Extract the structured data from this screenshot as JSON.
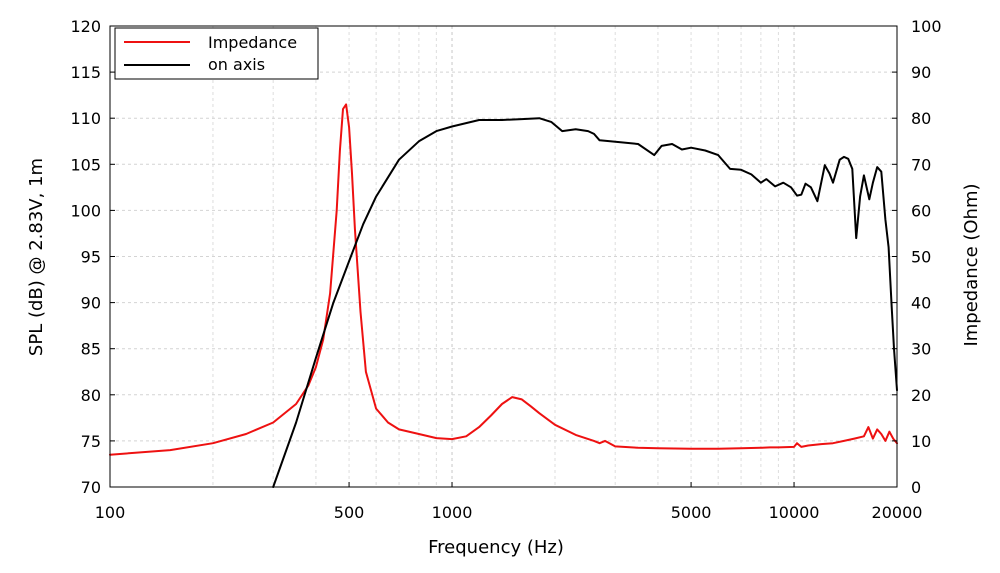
{
  "chart_data": {
    "type": "line",
    "xscale": "log",
    "xlim": [
      100,
      20000
    ],
    "x_ticks": [
      100,
      500,
      1000,
      5000,
      10000,
      20000
    ],
    "x_tick_labels": [
      "100",
      "500",
      "1000",
      "5000",
      "10000",
      "20000"
    ],
    "xlabel": "Frequency (Hz)",
    "y_left": {
      "label": "SPL (dB) @ 2.83V, 1m",
      "lim": [
        70,
        120
      ],
      "ticks": [
        70,
        75,
        80,
        85,
        90,
        95,
        100,
        105,
        110,
        115,
        120
      ],
      "tick_labels": [
        "70",
        "75",
        "80",
        "85",
        "90",
        "95",
        "100",
        "105",
        "110",
        "115",
        "120"
      ]
    },
    "y_right": {
      "label": "Impedance (Ohm)",
      "lim": [
        0,
        100
      ],
      "ticks": [
        0,
        10,
        20,
        30,
        40,
        50,
        60,
        70,
        80,
        90,
        100
      ],
      "tick_labels": [
        "0",
        "10",
        "20",
        "30",
        "40",
        "50",
        "60",
        "70",
        "80",
        "90",
        "100"
      ]
    },
    "grid": true,
    "legend": {
      "position": "top-left",
      "entries": [
        {
          "label": "Impedance",
          "color": "#ee1111"
        },
        {
          "label": "on axis",
          "color": "#000000"
        }
      ]
    },
    "series": [
      {
        "name": "Impedance",
        "axis": "right",
        "color": "#ee1111",
        "x": [
          100,
          150,
          200,
          250,
          300,
          350,
          380,
          400,
          420,
          440,
          460,
          470,
          480,
          490,
          500,
          510,
          520,
          540,
          560,
          600,
          650,
          700,
          800,
          900,
          1000,
          1100,
          1200,
          1300,
          1400,
          1500,
          1600,
          1700,
          1800,
          2000,
          2300,
          2600,
          2700,
          2800,
          3000,
          3500,
          4000,
          5000,
          6000,
          7000,
          8000,
          8500,
          9000,
          10000,
          10200,
          10500,
          11000,
          12000,
          13000,
          14000,
          15000,
          16000,
          16500,
          17000,
          17500,
          18000,
          18500,
          19000,
          19500,
          20000
        ],
        "y": [
          7.0,
          8.0,
          9.5,
          11.5,
          14.0,
          18.0,
          22.0,
          26.0,
          32.0,
          42.0,
          60.0,
          73.0,
          82.0,
          83.0,
          78.0,
          68.0,
          56.0,
          38.0,
          25.0,
          17.0,
          14.0,
          12.5,
          11.5,
          10.6,
          10.4,
          11.0,
          13.0,
          15.5,
          18.0,
          19.5,
          19.0,
          17.5,
          16.0,
          13.5,
          11.3,
          10.0,
          9.5,
          10.0,
          8.8,
          8.5,
          8.4,
          8.3,
          8.3,
          8.4,
          8.5,
          8.6,
          8.6,
          8.7,
          9.5,
          8.7,
          9.0,
          9.3,
          9.5,
          10.0,
          10.5,
          11.0,
          13.0,
          10.5,
          12.5,
          11.5,
          10.0,
          12.0,
          10.5,
          9.5
        ]
      },
      {
        "name": "on axis",
        "axis": "left",
        "color": "#000000",
        "x": [
          300,
          350,
          400,
          450,
          500,
          550,
          600,
          700,
          800,
          900,
          1000,
          1200,
          1400,
          1600,
          1800,
          1950,
          2100,
          2300,
          2500,
          2600,
          2700,
          2900,
          3500,
          3900,
          4100,
          4400,
          4700,
          5000,
          5500,
          6000,
          6500,
          7000,
          7500,
          8000,
          8300,
          8800,
          9300,
          9800,
          10200,
          10500,
          10800,
          11200,
          11700,
          12300,
          12700,
          13000,
          13600,
          14000,
          14400,
          14800,
          15200,
          15600,
          16000,
          16600,
          17000,
          17500,
          18000,
          18500,
          18900,
          19300,
          19600,
          20000
        ],
        "y": [
          70.0,
          77.0,
          84.0,
          90.0,
          94.5,
          98.5,
          101.5,
          105.5,
          107.5,
          108.6,
          109.1,
          109.8,
          109.8,
          109.9,
          110.0,
          109.6,
          108.6,
          108.8,
          108.6,
          108.3,
          107.6,
          107.5,
          107.2,
          106.0,
          107.0,
          107.2,
          106.6,
          106.8,
          106.5,
          106.0,
          104.5,
          104.4,
          103.9,
          103.0,
          103.4,
          102.6,
          103.0,
          102.5,
          101.6,
          101.7,
          102.9,
          102.5,
          101.0,
          104.9,
          104.0,
          103.0,
          105.5,
          105.8,
          105.6,
          104.5,
          97.0,
          101.5,
          103.8,
          101.2,
          103.0,
          104.7,
          104.2,
          99.0,
          96.0,
          89.5,
          85.0,
          80.5
        ]
      }
    ]
  }
}
